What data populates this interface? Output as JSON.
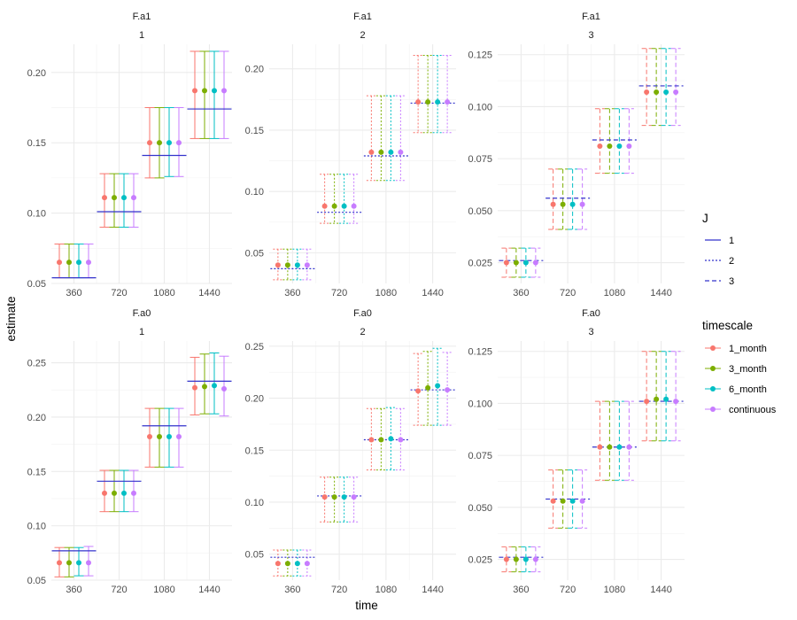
{
  "chart_data": {
    "type": "errorbar-facets",
    "xlabel": "time",
    "ylabel": "estimate",
    "time_points": [
      360,
      720,
      1080,
      1440
    ],
    "timescales": [
      "1_month",
      "3_month",
      "6_month",
      "continuous"
    ],
    "legends": {
      "J": {
        "title": "J",
        "entries": [
          {
            "label": "1",
            "line": "solid"
          },
          {
            "label": "2",
            "line": "dotted"
          },
          {
            "label": "3",
            "line": "dashed"
          }
        ]
      },
      "timescale": {
        "title": "timescale",
        "entries": [
          {
            "label": "1_month",
            "color": "#F8766D"
          },
          {
            "label": "3_month",
            "color": "#7CAE00"
          },
          {
            "label": "6_month",
            "color": "#00BFC4"
          },
          {
            "label": "continuous",
            "color": "#C77CFF"
          }
        ]
      }
    },
    "colors": {
      "1_month": "#F8766D",
      "3_month": "#7CAE00",
      "6_month": "#00BFC4",
      "continuous": "#C77CFF",
      "truth": "#3333CC"
    },
    "panels": [
      {
        "strip_top": "F.a1",
        "strip_bottom": "1",
        "J": "1",
        "ylim": [
          0.05,
          0.22
        ],
        "yticks": [
          0.05,
          0.1,
          0.15,
          0.2
        ],
        "ytick_labels": [
          "0.05",
          "0.10",
          "0.15",
          "0.20"
        ],
        "truth": [
          0.054,
          0.101,
          0.141,
          0.174
        ],
        "estimates": [
          [
            0.065,
            0.065,
            0.065,
            0.065
          ],
          [
            0.111,
            0.111,
            0.111,
            0.111
          ],
          [
            0.15,
            0.15,
            0.15,
            0.15
          ],
          [
            0.187,
            0.187,
            0.187,
            0.187
          ]
        ],
        "lower": [
          [
            0.054,
            0.054,
            0.054,
            0.054
          ],
          [
            0.09,
            0.09,
            0.09,
            0.09
          ],
          [
            0.125,
            0.125,
            0.126,
            0.126
          ],
          [
            0.153,
            0.153,
            0.153,
            0.153
          ]
        ],
        "upper": [
          [
            0.078,
            0.078,
            0.078,
            0.078
          ],
          [
            0.128,
            0.128,
            0.128,
            0.128
          ],
          [
            0.175,
            0.175,
            0.175,
            0.175
          ],
          [
            0.215,
            0.215,
            0.215,
            0.215
          ]
        ]
      },
      {
        "strip_top": "F.a1",
        "strip_bottom": "2",
        "J": "2",
        "ylim": [
          0.025,
          0.22
        ],
        "yticks": [
          0.05,
          0.1,
          0.15,
          0.2
        ],
        "ytick_labels": [
          "0.05",
          "0.10",
          "0.15",
          "0.20"
        ],
        "truth": [
          0.037,
          0.083,
          0.129,
          0.172
        ],
        "estimates": [
          [
            0.04,
            0.04,
            0.04,
            0.04
          ],
          [
            0.088,
            0.088,
            0.088,
            0.088
          ],
          [
            0.132,
            0.132,
            0.132,
            0.132
          ],
          [
            0.173,
            0.173,
            0.173,
            0.173
          ]
        ],
        "lower": [
          [
            0.028,
            0.028,
            0.028,
            0.028
          ],
          [
            0.074,
            0.074,
            0.074,
            0.074
          ],
          [
            0.109,
            0.109,
            0.109,
            0.109
          ],
          [
            0.148,
            0.148,
            0.148,
            0.148
          ]
        ],
        "upper": [
          [
            0.053,
            0.053,
            0.053,
            0.053
          ],
          [
            0.114,
            0.114,
            0.114,
            0.114
          ],
          [
            0.178,
            0.178,
            0.178,
            0.178
          ],
          [
            0.211,
            0.211,
            0.211,
            0.211
          ]
        ]
      },
      {
        "strip_top": "F.a1",
        "strip_bottom": "3",
        "J": "3",
        "ylim": [
          0.015,
          0.13
        ],
        "yticks": [
          0.025,
          0.05,
          0.075,
          0.1,
          0.125
        ],
        "ytick_labels": [
          "0.025",
          "0.050",
          "0.075",
          "0.100",
          "0.125"
        ],
        "truth": [
          0.026,
          0.056,
          0.084,
          0.11
        ],
        "estimates": [
          [
            0.025,
            0.025,
            0.025,
            0.025
          ],
          [
            0.053,
            0.053,
            0.053,
            0.053
          ],
          [
            0.081,
            0.081,
            0.081,
            0.081
          ],
          [
            0.107,
            0.107,
            0.107,
            0.107
          ]
        ],
        "lower": [
          [
            0.018,
            0.018,
            0.018,
            0.018
          ],
          [
            0.041,
            0.041,
            0.041,
            0.041
          ],
          [
            0.068,
            0.068,
            0.068,
            0.068
          ],
          [
            0.091,
            0.091,
            0.091,
            0.091
          ]
        ],
        "upper": [
          [
            0.032,
            0.032,
            0.032,
            0.032
          ],
          [
            0.07,
            0.07,
            0.07,
            0.07
          ],
          [
            0.099,
            0.099,
            0.099,
            0.099
          ],
          [
            0.128,
            0.128,
            0.128,
            0.128
          ]
        ]
      },
      {
        "strip_top": "F.a0",
        "strip_bottom": "1",
        "J": "1",
        "ylim": [
          0.05,
          0.27
        ],
        "yticks": [
          0.05,
          0.1,
          0.15,
          0.2,
          0.25
        ],
        "ytick_labels": [
          "0.05",
          "0.10",
          "0.15",
          "0.20",
          "0.25"
        ],
        "truth": [
          0.077,
          0.141,
          0.192,
          0.233
        ],
        "estimates": [
          [
            0.066,
            0.066,
            0.066,
            0.066
          ],
          [
            0.13,
            0.13,
            0.13,
            0.13
          ],
          [
            0.182,
            0.182,
            0.182,
            0.182
          ],
          [
            0.227,
            0.228,
            0.229,
            0.226
          ]
        ],
        "lower": [
          [
            0.053,
            0.053,
            0.054,
            0.054
          ],
          [
            0.113,
            0.113,
            0.113,
            0.113
          ],
          [
            0.154,
            0.154,
            0.154,
            0.154
          ],
          [
            0.202,
            0.203,
            0.203,
            0.201
          ]
        ],
        "upper": [
          [
            0.08,
            0.08,
            0.08,
            0.081
          ],
          [
            0.151,
            0.151,
            0.151,
            0.151
          ],
          [
            0.208,
            0.208,
            0.208,
            0.208
          ],
          [
            0.255,
            0.258,
            0.259,
            0.256
          ]
        ]
      },
      {
        "strip_top": "F.a0",
        "strip_bottom": "2",
        "J": "2",
        "ylim": [
          0.025,
          0.255
        ],
        "yticks": [
          0.05,
          0.1,
          0.15,
          0.2,
          0.25
        ],
        "ytick_labels": [
          "0.05",
          "0.10",
          "0.15",
          "0.20",
          "0.25"
        ],
        "truth": [
          0.047,
          0.106,
          0.16,
          0.208
        ],
        "estimates": [
          [
            0.041,
            0.041,
            0.041,
            0.041
          ],
          [
            0.105,
            0.105,
            0.105,
            0.105
          ],
          [
            0.16,
            0.16,
            0.161,
            0.16
          ],
          [
            0.207,
            0.21,
            0.212,
            0.208
          ]
        ],
        "lower": [
          [
            0.029,
            0.029,
            0.029,
            0.029
          ],
          [
            0.081,
            0.081,
            0.081,
            0.081
          ],
          [
            0.131,
            0.131,
            0.131,
            0.131
          ],
          [
            0.174,
            0.174,
            0.174,
            0.174
          ]
        ],
        "upper": [
          [
            0.054,
            0.054,
            0.054,
            0.054
          ],
          [
            0.124,
            0.124,
            0.124,
            0.124
          ],
          [
            0.19,
            0.19,
            0.191,
            0.19
          ],
          [
            0.243,
            0.245,
            0.248,
            0.244
          ]
        ]
      },
      {
        "strip_top": "F.a0",
        "strip_bottom": "3",
        "J": "3",
        "ylim": [
          0.015,
          0.13
        ],
        "yticks": [
          0.025,
          0.05,
          0.075,
          0.1,
          0.125
        ],
        "ytick_labels": [
          "0.025",
          "0.050",
          "0.075",
          "0.100",
          "0.125"
        ],
        "truth": [
          0.026,
          0.054,
          0.079,
          0.101
        ],
        "estimates": [
          [
            0.025,
            0.025,
            0.025,
            0.025
          ],
          [
            0.053,
            0.053,
            0.053,
            0.053
          ],
          [
            0.079,
            0.079,
            0.079,
            0.079
          ],
          [
            0.101,
            0.102,
            0.102,
            0.101
          ]
        ],
        "lower": [
          [
            0.019,
            0.019,
            0.019,
            0.019
          ],
          [
            0.04,
            0.04,
            0.04,
            0.04
          ],
          [
            0.063,
            0.063,
            0.063,
            0.063
          ],
          [
            0.082,
            0.082,
            0.082,
            0.082
          ]
        ],
        "upper": [
          [
            0.031,
            0.031,
            0.031,
            0.031
          ],
          [
            0.068,
            0.068,
            0.068,
            0.068
          ],
          [
            0.101,
            0.101,
            0.101,
            0.101
          ],
          [
            0.125,
            0.125,
            0.125,
            0.125
          ]
        ]
      }
    ]
  }
}
